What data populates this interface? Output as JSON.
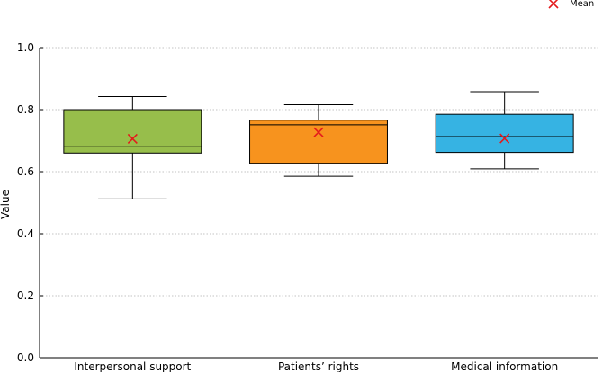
{
  "chart_data": {
    "type": "box",
    "title": "",
    "xlabel": "",
    "ylabel": "Value",
    "ylim": [
      0.0,
      1.0
    ],
    "yticks": [
      "0.0",
      "0.2",
      "0.4",
      "0.6",
      "0.8",
      "1.0"
    ],
    "grid": "horizontal",
    "legend": {
      "placement": "top-right",
      "entries": [
        {
          "label": "Mean",
          "marker": "x",
          "color": "#e41a1c"
        }
      ]
    },
    "categories": [
      "Interpersonal support",
      "Patients’ rights",
      "Medical information"
    ],
    "boxes": [
      {
        "category": "Interpersonal support",
        "whisker_low": 0.512,
        "q1": 0.66,
        "median": 0.682,
        "q3": 0.8,
        "whisker_high": 0.842,
        "mean": 0.706,
        "color": "#97be4b"
      },
      {
        "category": "Patients’ rights",
        "whisker_low": 0.585,
        "q1": 0.627,
        "median": 0.751,
        "q3": 0.766,
        "whisker_high": 0.816,
        "mean": 0.727,
        "color": "#f7931e"
      },
      {
        "category": "Medical information",
        "whisker_low": 0.609,
        "q1": 0.662,
        "median": 0.713,
        "q3": 0.785,
        "whisker_high": 0.858,
        "mean": 0.707,
        "color": "#36b3e3"
      }
    ]
  }
}
